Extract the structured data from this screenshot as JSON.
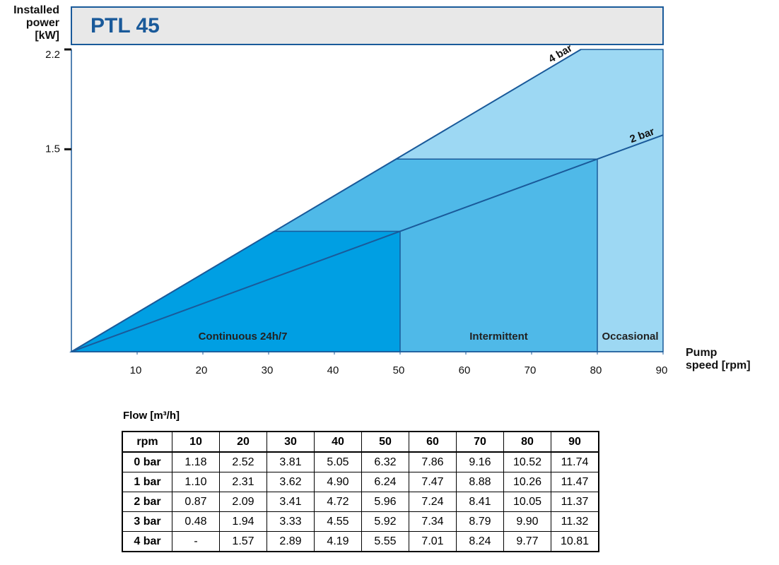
{
  "chart_data": {
    "type": "line",
    "title": "PTL 45",
    "y_label": [
      "Installed",
      "power",
      "[kW]"
    ],
    "x_label": [
      "Pump",
      "speed [rpm]"
    ],
    "xlim": [
      0,
      90
    ],
    "xticks": [
      10,
      20,
      30,
      40,
      50,
      60,
      70,
      80,
      90
    ],
    "ylim": [
      0.08,
      2.2
    ],
    "yticks": [
      1.5,
      2.2
    ],
    "series": [
      {
        "name": "4 bar",
        "color": "#1a5a9a",
        "x": [
          0,
          77.5
        ],
        "values": [
          0.08,
          2.2
        ]
      },
      {
        "name": "2 bar",
        "color": "#1a5a9a",
        "x": [
          0,
          90
        ],
        "values": [
          0.08,
          1.6
        ]
      }
    ],
    "zones": [
      {
        "name": "Continuous 24h/7",
        "end": 50,
        "color": "#009fe3"
      },
      {
        "name": "Intermittent",
        "end": 80,
        "color": "#4fb9e8"
      },
      {
        "name": "Occasional",
        "end": 90,
        "color": "#9dd8f3"
      }
    ]
  },
  "table": {
    "title": "Flow [m³/h]",
    "columns": [
      "rpm",
      "10",
      "20",
      "30",
      "40",
      "50",
      "60",
      "70",
      "80",
      "90"
    ],
    "rows": [
      {
        "label": "0 bar",
        "cells": [
          "1.18",
          "2.52",
          "3.81",
          "5.05",
          "6.32",
          "7.86",
          "9.16",
          "10.52",
          "11.74"
        ]
      },
      {
        "label": "1 bar",
        "cells": [
          "1.10",
          "2.31",
          "3.62",
          "4.90",
          "6.24",
          "7.47",
          "8.88",
          "10.26",
          "11.47"
        ]
      },
      {
        "label": "2 bar",
        "cells": [
          "0.87",
          "2.09",
          "3.41",
          "4.72",
          "5.96",
          "7.24",
          "8.41",
          "10.05",
          "11.37"
        ]
      },
      {
        "label": "3 bar",
        "cells": [
          "0.48",
          "1.94",
          "3.33",
          "4.55",
          "5.92",
          "7.34",
          "8.79",
          "9.90",
          "11.32"
        ]
      },
      {
        "label": "4 bar",
        "cells": [
          "-",
          "1.57",
          "2.89",
          "4.19",
          "5.55",
          "7.01",
          "8.24",
          "9.77",
          "10.81"
        ]
      }
    ]
  }
}
